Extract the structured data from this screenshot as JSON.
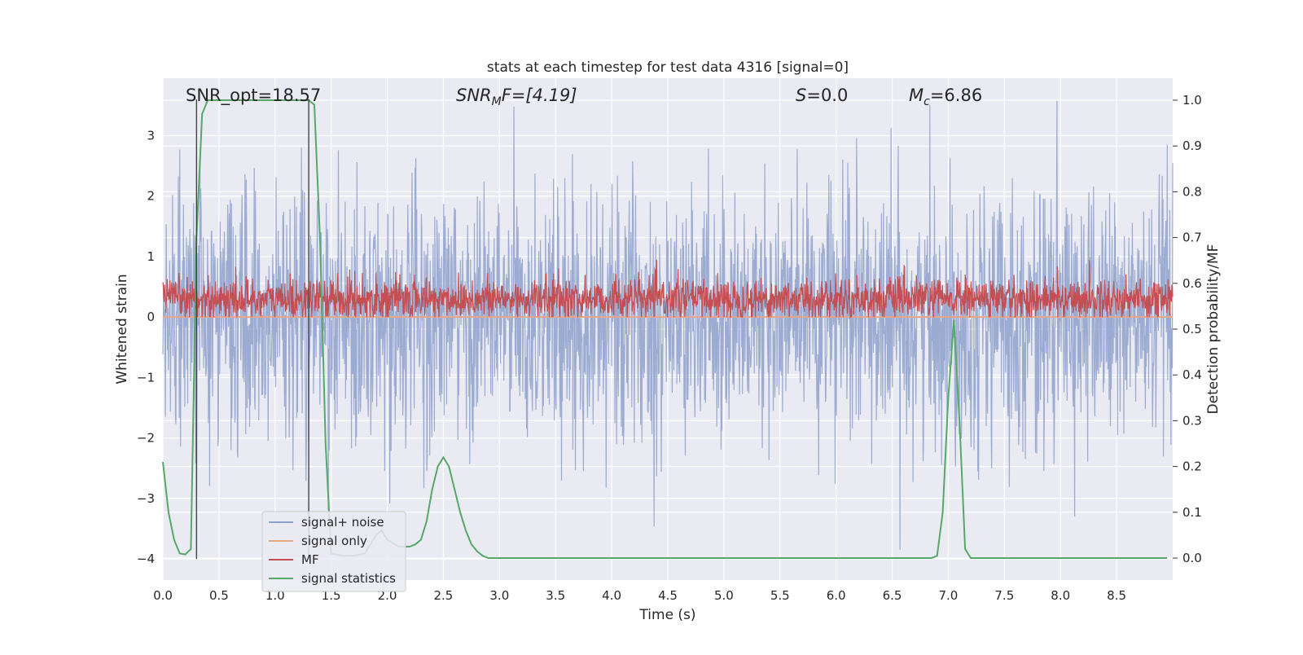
{
  "chart_data": {
    "type": "line",
    "title": "stats at each timestep for test data 4316 [signal=0]",
    "xlabel": "Time (s)",
    "ylabel_left": "Whitened strain",
    "ylabel_right": "Detection probability/MF",
    "xlim": [
      0.0,
      9.0
    ],
    "ylim_left": [
      -4.35,
      3.95
    ],
    "ylim_right": [
      -0.048,
      1.048
    ],
    "grid": true,
    "legend_placement": "lower-left",
    "xticks": [
      "0.0",
      "0.5",
      "1.0",
      "1.5",
      "2.0",
      "2.5",
      "3.0",
      "3.5",
      "4.0",
      "4.5",
      "5.0",
      "5.5",
      "6.0",
      "6.5",
      "7.0",
      "7.5",
      "8.0",
      "8.5"
    ],
    "yticks_left": [
      "3",
      "2",
      "1",
      "0",
      "−1",
      "−2",
      "−3",
      "−4"
    ],
    "yticks_right": [
      "1.0",
      "0.9",
      "0.8",
      "0.7",
      "0.6",
      "0.5",
      "0.4",
      "0.3",
      "0.2",
      "0.1",
      "0.0"
    ],
    "annotations": {
      "snr_opt": "SNR_opt=18.57",
      "snr_mf_main": "SNR",
      "snr_mf_sub": "M",
      "snr_mf_rest": "F=[4.19]",
      "s_main": "S",
      "s_rest": "=0.0",
      "mc_main": "M",
      "mc_sub": "c",
      "mc_rest": "=6.86"
    },
    "vertical_markers_x": [
      0.3,
      1.3
    ],
    "series": [
      {
        "name": "signal+ noise",
        "color": "#8da0cb",
        "description": "whitened strain noise, roughly Gaussian with std ~1, peaks between -4 and 3.6",
        "envelope": {
          "typical_min": -2.5,
          "typical_max": 2.5,
          "min": -4.0,
          "max": 3.6
        }
      },
      {
        "name": "signal only",
        "color": "#e8a587",
        "values_constant": 0.0
      },
      {
        "name": "MF",
        "color": "#c44e52",
        "description": "matched filter output, values between 0.0 and 0.95 on left axis",
        "envelope": {
          "min": 0.0,
          "max": 0.95
        }
      },
      {
        "name": "signal statistics",
        "color": "#55a868",
        "axis": "right",
        "x": [
          0.0,
          0.05,
          0.1,
          0.15,
          0.2,
          0.25,
          0.3,
          0.35,
          0.4,
          0.5,
          0.6,
          0.7,
          0.8,
          0.9,
          1.0,
          1.1,
          1.2,
          1.3,
          1.35,
          1.4,
          1.45,
          1.5,
          1.6,
          1.7,
          1.8,
          1.9,
          1.95,
          2.0,
          2.1,
          2.2,
          2.25,
          2.3,
          2.35,
          2.4,
          2.45,
          2.5,
          2.55,
          2.6,
          2.65,
          2.7,
          2.75,
          2.8,
          2.85,
          2.9,
          3.0,
          3.5,
          4.0,
          4.5,
          5.0,
          5.5,
          6.0,
          6.5,
          6.85,
          6.9,
          6.95,
          7.0,
          7.05,
          7.1,
          7.15,
          7.2,
          7.5,
          8.0,
          8.5,
          8.95
        ],
        "y": [
          0.21,
          0.1,
          0.04,
          0.01,
          0.008,
          0.02,
          0.7,
          0.97,
          1.0,
          1.0,
          1.0,
          1.0,
          1.0,
          1.0,
          1.0,
          1.0,
          1.0,
          1.0,
          0.99,
          0.7,
          0.25,
          0.01,
          0.005,
          0.005,
          0.01,
          0.05,
          0.06,
          0.04,
          0.025,
          0.025,
          0.03,
          0.04,
          0.08,
          0.15,
          0.2,
          0.22,
          0.2,
          0.15,
          0.1,
          0.06,
          0.03,
          0.015,
          0.005,
          0.0,
          0.0,
          0.0,
          0.0,
          0.0,
          0.0,
          0.0,
          0.0,
          0.0,
          0.0,
          0.005,
          0.1,
          0.35,
          0.52,
          0.3,
          0.02,
          0.0,
          0.0,
          0.0,
          0.0,
          0.0
        ]
      }
    ]
  }
}
